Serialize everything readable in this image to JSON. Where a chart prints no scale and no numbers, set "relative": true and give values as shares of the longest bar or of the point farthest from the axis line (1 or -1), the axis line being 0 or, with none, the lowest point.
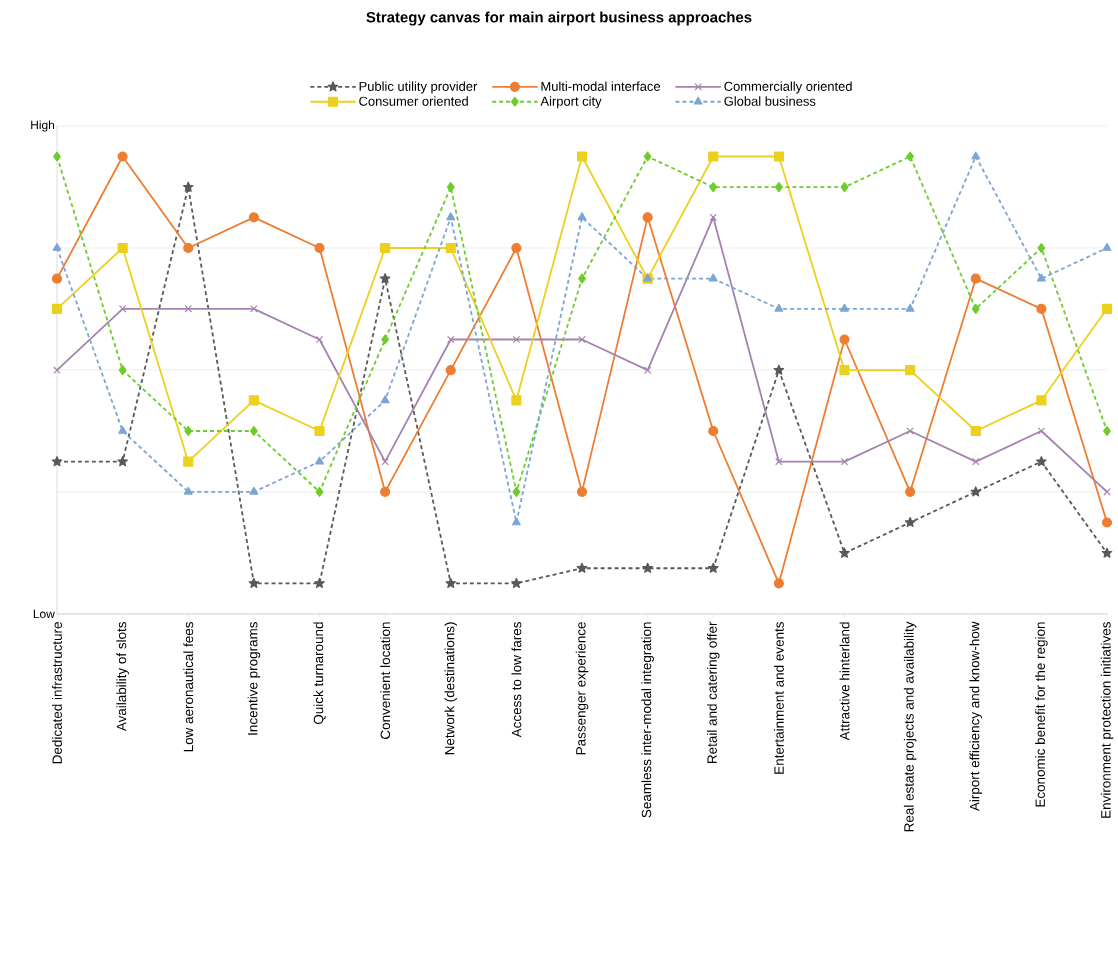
{
  "chart_data": {
    "type": "line",
    "title": "Strategy canvas for main airport business approaches",
    "categories": [
      "Dedicated infrastructure",
      "Availability of slots",
      "Low aeronautical fees",
      "Incentive programs",
      "Quick turnaround",
      "Convenient location",
      "Network (destinations)",
      "Access to low fares",
      "Passenger experience",
      "Seamless inter-modal integration",
      "Retail and catering offer",
      "Entertainment and events",
      "Attractive hinterland",
      "Real estate projects and availability",
      "Airport efficiency and know-how",
      "Economic benefit for the region",
      "Environment protection initiatives"
    ],
    "series": [
      {
        "name": "Public utility provider",
        "color": "#595959",
        "marker": "star",
        "line_style": "dashed",
        "values": [
          0.333,
          0.333,
          0.933,
          0.067,
          0.067,
          0.733,
          0.067,
          0.067,
          0.1,
          0.1,
          0.1,
          0.533,
          0.133,
          0.2,
          0.267,
          0.333,
          0.133
        ]
      },
      {
        "name": "Multi-modal interface",
        "color": "#ed7d31",
        "marker": "circle",
        "line_style": "solid",
        "values": [
          0.733,
          1,
          0.8,
          0.867,
          0.8,
          0.267,
          0.533,
          0.8,
          0.267,
          0.867,
          0.4,
          0.067,
          0.6,
          0.267,
          0.733,
          0.667,
          0.2
        ]
      },
      {
        "name": "Commercially oriented",
        "color": "#a582b0",
        "marker": "cross",
        "line_style": "solid",
        "values": [
          0.533,
          0.667,
          0.667,
          0.667,
          0.6,
          0.333,
          0.6,
          0.6,
          0.6,
          0.533,
          0.867,
          0.333,
          0.333,
          0.4,
          0.333,
          0.4,
          0.267
        ]
      },
      {
        "name": "Consumer oriented",
        "color": "#ecd01e",
        "marker": "square",
        "line_style": "solid",
        "values": [
          0.667,
          0.8,
          0.333,
          0.467,
          0.4,
          0.8,
          0.8,
          0.467,
          1,
          0.733,
          1,
          1,
          0.533,
          0.533,
          0.4,
          0.467,
          0.667
        ]
      },
      {
        "name": "Airport city",
        "color": "#6dcc2c",
        "marker": "diamond",
        "line_style": "dashed",
        "values": [
          1,
          0.533,
          0.4,
          0.4,
          0.267,
          0.6,
          0.933,
          0.267,
          0.733,
          1,
          0.933,
          0.933,
          0.933,
          1,
          0.667,
          0.8,
          0.4
        ]
      },
      {
        "name": "Global business",
        "color": "#7ba5d4",
        "marker": "triangle",
        "line_style": "dashed",
        "values": [
          0.8,
          0.4,
          0.267,
          0.267,
          0.333,
          0.467,
          0.867,
          0.2,
          0.867,
          0.733,
          0.733,
          0.667,
          0.667,
          0.667,
          1,
          0.733,
          0.8
        ]
      }
    ],
    "relative": true,
    "annotations": [
      "High",
      "Low"
    ],
    "grid": "y",
    "legend": "top"
  }
}
